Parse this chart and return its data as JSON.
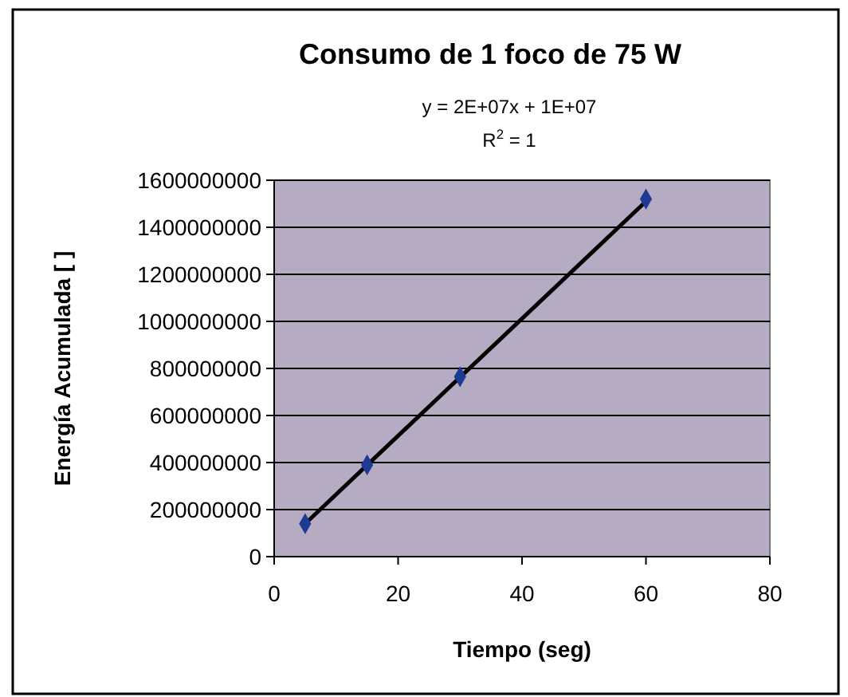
{
  "chart_data": {
    "type": "scatter",
    "title": "Consumo de 1 foco de 75 W",
    "xlabel": "Tiempo (seg)",
    "ylabel": "Energía Acumulada [ ]",
    "annotations": [
      "y = 2E+07x + 1E+07",
      "R$^{2}$ = 1"
    ],
    "x": [
      5,
      15,
      30,
      60
    ],
    "series": [
      {
        "color": "#1f3a93",
        "values": [
          140000000,
          390000000,
          765000000,
          1520000000
        ],
        "marker": "diamond"
      },
      {
        "type": "line",
        "color": "#000000",
        "x": [
          5,
          60
        ],
        "values": [
          140000000,
          1510000000
        ],
        "marker": "none"
      }
    ],
    "xlim": [
      0,
      80
    ],
    "xticks": [
      0,
      20,
      40,
      60,
      80
    ],
    "ylim": [
      0,
      1600000000
    ],
    "yticks": [
      0,
      200000000,
      400000000,
      600000000,
      800000000,
      1000000000,
      1200000000,
      1400000000,
      1600000000
    ],
    "grid": "y"
  }
}
